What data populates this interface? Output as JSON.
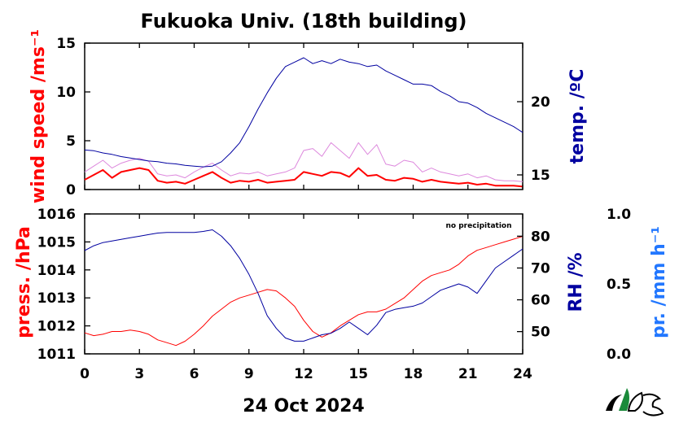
{
  "title": "Fukuoka Univ. (18th building)",
  "date_label": "24 Oct 2024",
  "note": "no precipitation",
  "colors": {
    "wind": "#ff0000",
    "wind_gust": "#dd88dd",
    "temp": "#0000a0",
    "pressure": "#ff0000",
    "rh": "#0000a0",
    "precip": "#2277ff",
    "axis": "#000000"
  },
  "chart_data": [
    {
      "panel": "top",
      "type": "line",
      "x_ticks": [
        0,
        3,
        6,
        9,
        12,
        15,
        18,
        21,
        24
      ],
      "xlim": [
        0,
        24
      ],
      "left_axis": {
        "label": "wind speed /ms⁻¹",
        "ylim": [
          0,
          15
        ],
        "ticks": [
          "0",
          "5",
          "10",
          "15"
        ]
      },
      "right_axis": {
        "label": "temp. /ºC",
        "ylim": [
          14,
          24
        ],
        "ticks": [
          "15",
          "20"
        ]
      },
      "series": [
        {
          "axis": "left",
          "x": [
            0,
            0.5,
            1,
            1.5,
            2,
            2.5,
            3,
            3.5,
            4,
            4.5,
            5,
            5.5,
            6,
            6.5,
            7,
            7.5,
            8,
            8.5,
            9,
            9.5,
            10,
            10.5,
            11,
            11.5,
            12,
            12.5,
            13,
            13.5,
            14,
            14.5,
            15,
            15.5,
            16,
            16.5,
            17,
            17.5,
            18,
            18.5,
            19,
            19.5,
            20,
            20.5,
            21,
            21.5,
            22,
            22.5,
            23,
            23.5,
            24
          ],
          "values": [
            1.0,
            1.5,
            2.0,
            1.2,
            1.8,
            2.0,
            2.2,
            2.0,
            0.9,
            0.7,
            0.8,
            0.6,
            1.0,
            1.4,
            1.8,
            1.2,
            0.7,
            0.9,
            0.8,
            1.0,
            0.7,
            0.8,
            0.9,
            1.0,
            1.8,
            1.6,
            1.4,
            1.8,
            1.7,
            1.3,
            2.2,
            1.4,
            1.5,
            1.0,
            0.9,
            1.2,
            1.1,
            0.8,
            1.0,
            0.8,
            0.7,
            0.6,
            0.7,
            0.5,
            0.6,
            0.4,
            0.4,
            0.4,
            0.3
          ]
        },
        {
          "axis": "left",
          "x": [
            0,
            0.5,
            1,
            1.5,
            2,
            2.5,
            3,
            3.5,
            4,
            4.5,
            5,
            5.5,
            6,
            6.5,
            7,
            7.5,
            8,
            8.5,
            9,
            9.5,
            10,
            10.5,
            11,
            11.5,
            12,
            12.5,
            13,
            13.5,
            14,
            14.5,
            15,
            15.5,
            16,
            16.5,
            17,
            17.5,
            18,
            18.5,
            19,
            19.5,
            20,
            20.5,
            21,
            21.5,
            22,
            22.5,
            23,
            23.5,
            24
          ],
          "values": [
            1.8,
            2.4,
            3.0,
            2.2,
            2.7,
            3.0,
            3.2,
            2.9,
            1.6,
            1.4,
            1.5,
            1.2,
            1.8,
            2.3,
            2.7,
            2.0,
            1.4,
            1.7,
            1.6,
            1.8,
            1.4,
            1.6,
            1.8,
            2.2,
            4.0,
            4.2,
            3.4,
            4.8,
            4.0,
            3.2,
            4.8,
            3.6,
            4.6,
            2.6,
            2.4,
            3.0,
            2.8,
            1.8,
            2.2,
            1.8,
            1.6,
            1.4,
            1.6,
            1.2,
            1.4,
            1.0,
            0.9,
            0.9,
            0.8
          ]
        },
        {
          "axis": "right",
          "x": [
            0,
            0.5,
            1,
            1.5,
            2,
            2.5,
            3,
            3.5,
            4,
            4.5,
            5,
            5.5,
            6,
            6.5,
            7,
            7.5,
            8,
            8.5,
            9,
            9.5,
            10,
            10.5,
            11,
            11.5,
            12,
            12.5,
            13,
            13.5,
            14,
            14.5,
            15,
            15.5,
            16,
            16.5,
            17,
            17.5,
            18,
            18.5,
            19,
            19.5,
            20,
            20.5,
            21,
            21.5,
            22,
            22.5,
            23,
            23.5,
            24
          ],
          "values": [
            16.7,
            16.65,
            16.5,
            16.4,
            16.25,
            16.15,
            16.05,
            15.95,
            15.9,
            15.8,
            15.75,
            15.65,
            15.6,
            15.55,
            15.6,
            15.9,
            16.5,
            17.2,
            18.3,
            19.5,
            20.6,
            21.6,
            22.4,
            22.7,
            23.0,
            22.6,
            22.8,
            22.6,
            22.9,
            22.7,
            22.6,
            22.4,
            22.5,
            22.1,
            21.8,
            21.5,
            21.2,
            21.2,
            21.1,
            20.7,
            20.4,
            20.0,
            19.9,
            19.6,
            19.2,
            18.9,
            18.6,
            18.3,
            17.9
          ]
        }
      ]
    },
    {
      "panel": "bottom",
      "type": "line",
      "x_ticks": [
        0,
        3,
        6,
        9,
        12,
        15,
        18,
        21,
        24
      ],
      "xlim": [
        0,
        24
      ],
      "left_axis": {
        "label": "press. /hPa",
        "ylim": [
          1011,
          1016
        ],
        "ticks": [
          "1011",
          "1012",
          "1013",
          "1014",
          "1015",
          "1016"
        ]
      },
      "right_axis": {
        "label": "RH /%",
        "ylim": [
          43,
          87
        ],
        "ticks": [
          "50",
          "60",
          "70",
          "80"
        ]
      },
      "far_right_axis": {
        "label": "pr. /mm h⁻¹",
        "ylim": [
          0,
          1
        ],
        "ticks": [
          "0.0",
          "0.5",
          "1.0"
        ]
      },
      "series": [
        {
          "axis": "left",
          "x": [
            0,
            0.5,
            1,
            1.5,
            2,
            2.5,
            3,
            3.5,
            4,
            4.5,
            5,
            5.5,
            6,
            6.5,
            7,
            7.5,
            8,
            8.5,
            9,
            9.5,
            10,
            10.5,
            11,
            11.5,
            12,
            12.5,
            13,
            13.5,
            14,
            14.5,
            15,
            15.5,
            16,
            16.5,
            17,
            17.5,
            18,
            18.5,
            19,
            19.5,
            20,
            20.5,
            21,
            21.5,
            22,
            22.5,
            23,
            23.5,
            24
          ],
          "values": [
            1011.75,
            1011.65,
            1011.7,
            1011.8,
            1011.8,
            1011.85,
            1011.8,
            1011.7,
            1011.5,
            1011.4,
            1011.3,
            1011.45,
            1011.7,
            1012.0,
            1012.35,
            1012.6,
            1012.85,
            1013.0,
            1013.1,
            1013.2,
            1013.3,
            1013.25,
            1013.0,
            1012.7,
            1012.2,
            1011.8,
            1011.6,
            1011.75,
            1012.0,
            1012.2,
            1012.4,
            1012.5,
            1012.5,
            1012.6,
            1012.8,
            1013.0,
            1013.3,
            1013.6,
            1013.8,
            1013.9,
            1014.0,
            1014.2,
            1014.5,
            1014.7,
            1014.8,
            1014.9,
            1015.0,
            1015.1,
            1015.2
          ]
        },
        {
          "axis": "right",
          "x": [
            0,
            0.5,
            1,
            1.5,
            2,
            2.5,
            3,
            3.5,
            4,
            4.5,
            5,
            5.5,
            6,
            6.5,
            7,
            7.5,
            8,
            8.5,
            9,
            9.5,
            10,
            10.5,
            11,
            11.5,
            12,
            12.5,
            13,
            13.5,
            14,
            14.5,
            15,
            15.5,
            16,
            16.5,
            17,
            17.5,
            18,
            18.5,
            19,
            19.5,
            20,
            20.5,
            21,
            21.5,
            22,
            22.5,
            23,
            23.5,
            24
          ],
          "values": [
            75.5,
            77,
            78,
            78.5,
            79,
            79.5,
            80,
            80.5,
            81,
            81.2,
            81.2,
            81.2,
            81.2,
            81.5,
            82,
            80,
            77,
            73,
            68,
            62,
            55,
            51,
            48,
            47,
            47,
            48,
            49,
            49.5,
            51,
            53,
            51,
            49,
            52,
            56,
            57,
            57.5,
            58,
            59,
            61,
            63,
            64,
            65,
            64,
            62,
            66,
            70,
            72,
            74,
            76
          ]
        }
      ]
    }
  ]
}
